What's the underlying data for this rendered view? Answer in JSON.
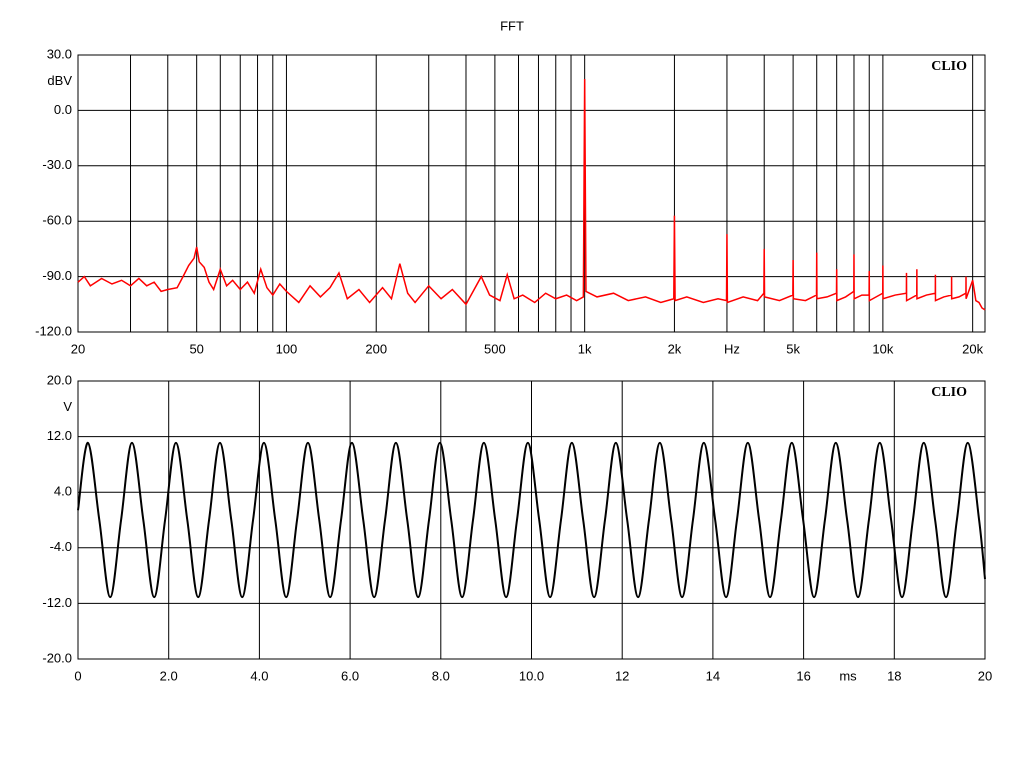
{
  "title": "FFT",
  "chart_data": [
    {
      "type": "line",
      "log_x": true,
      "grid": true,
      "color": "#ff0000",
      "watermark": "CLIO",
      "xlabel": "Hz",
      "ylabel": "dBV",
      "xlim": [
        20,
        22000
      ],
      "ylim": [
        -120,
        30
      ],
      "xticks": [
        20,
        50,
        100,
        200,
        500,
        {
          "value": 1000,
          "label": "1k"
        },
        {
          "value": 2000,
          "label": "2k"
        },
        {
          "value": 5000,
          "label": "5k"
        },
        {
          "value": 10000,
          "label": "10k"
        },
        {
          "value": 20000,
          "label": "20k"
        }
      ],
      "xminor": [
        30,
        40,
        60,
        70,
        80,
        90,
        300,
        400,
        600,
        700,
        800,
        900,
        3000,
        4000,
        6000,
        7000,
        8000,
        9000
      ],
      "yticks": [
        {
          "value": 30,
          "label": "30.0"
        },
        {
          "value": 0,
          "label": "0.0"
        },
        {
          "value": -30,
          "label": "-30.0"
        },
        {
          "value": -60,
          "label": "-60.0"
        },
        {
          "value": -90,
          "label": "-90.0"
        },
        {
          "value": -120,
          "label": "-120.0"
        }
      ],
      "x": [
        20,
        21,
        22,
        24,
        26,
        28,
        30,
        32,
        34,
        36,
        38,
        40,
        43,
        45,
        47,
        49,
        50,
        51,
        53,
        55,
        57,
        60,
        63,
        66,
        70,
        74,
        78,
        82,
        86,
        90,
        95,
        100,
        110,
        120,
        130,
        140,
        150,
        160,
        175,
        190,
        210,
        225,
        240,
        255,
        270,
        300,
        330,
        360,
        400,
        450,
        480,
        520,
        550,
        580,
        620,
        680,
        740,
        800,
        870,
        940,
        990,
        1000,
        1010,
        1100,
        1250,
        1400,
        1600,
        1800,
        1990,
        2000,
        2010,
        2200,
        2500,
        2800,
        2990,
        3000,
        3010,
        3400,
        3800,
        3990,
        4000,
        4010,
        4500,
        4990,
        5000,
        5010,
        5500,
        5990,
        6000,
        6010,
        6500,
        6990,
        7000,
        7010,
        7500,
        7990,
        8000,
        8010,
        8500,
        8990,
        9000,
        9010,
        9990,
        10000,
        10010,
        11000,
        11990,
        12000,
        12010,
        12990,
        13000,
        13010,
        14000,
        14990,
        15000,
        15010,
        16000,
        16990,
        17000,
        17010,
        18000,
        18990,
        19000,
        19010,
        20000,
        20500,
        21000,
        21500,
        22000
      ],
      "values": [
        -93,
        -90,
        -95,
        -91,
        -94,
        -92,
        -95,
        -91,
        -95,
        -93,
        -98,
        -97,
        -96,
        -90,
        -84,
        -80,
        -74,
        -82,
        -85,
        -93,
        -97,
        -86,
        -95,
        -92,
        -97,
        -93,
        -99,
        -86,
        -96,
        -100,
        -94,
        -98,
        -104,
        -95,
        -101,
        -96,
        -88,
        -102,
        -97,
        -104,
        -96,
        -102,
        -83,
        -99,
        -104,
        -95,
        -102,
        -97,
        -105,
        -90,
        -100,
        -103,
        -89,
        -102,
        -100,
        -104,
        -99,
        -102,
        -100,
        -103,
        -101,
        17,
        -98,
        -101,
        -99,
        -103,
        -101,
        -104,
        -102,
        -57,
        -103,
        -101,
        -104,
        -102,
        -103,
        -67,
        -104,
        -101,
        -103,
        -99,
        -75,
        -101,
        -103,
        -100,
        -81,
        -102,
        -103,
        -100,
        -77,
        -102,
        -101,
        -99,
        -86,
        -103,
        -101,
        -98,
        -78,
        -102,
        -100,
        -100,
        -87,
        -103,
        -99,
        -84,
        -102,
        -100,
        -99,
        -88,
        -103,
        -100,
        -86,
        -102,
        -100,
        -99,
        -89,
        -103,
        -101,
        -100,
        -90,
        -102,
        -101,
        -99,
        -90,
        -102,
        -92,
        -103,
        -104,
        -107,
        -108
      ]
    },
    {
      "type": "line",
      "log_x": false,
      "grid": true,
      "color": "#000000",
      "watermark": "CLIO",
      "xlabel": "ms",
      "ylabel": "V",
      "xlim": [
        0,
        20
      ],
      "ylim": [
        -20,
        20
      ],
      "xticks": [
        0,
        {
          "value": 2,
          "label": "2.0"
        },
        {
          "value": 4,
          "label": "4.0"
        },
        {
          "value": 6,
          "label": "6.0"
        },
        {
          "value": 8,
          "label": "8.0"
        },
        {
          "value": 10,
          "label": "10.0"
        },
        12,
        14,
        16,
        18,
        20
      ],
      "yticks": [
        {
          "value": 20,
          "label": "20.0"
        },
        {
          "value": 12,
          "label": "12.0"
        },
        {
          "value": 4,
          "label": "4.0"
        },
        {
          "value": -4,
          "label": "-4.0"
        },
        {
          "value": -12,
          "label": "-12.0"
        },
        {
          "value": -20,
          "label": "-20.0"
        }
      ],
      "x": [
        0,
        0.22,
        0.47,
        0.71,
        0.95,
        1.19,
        1.44,
        1.68,
        1.92,
        2.16,
        2.41,
        2.65,
        2.89,
        3.13,
        3.38,
        3.62,
        3.86,
        4.1,
        4.35,
        4.59,
        4.83,
        5.07,
        5.32,
        5.56,
        5.8,
        6.04,
        6.29,
        6.53,
        6.77,
        7.01,
        7.26,
        7.5,
        7.74,
        7.98,
        8.23,
        8.47,
        8.71,
        8.95,
        9.2,
        9.44,
        9.68,
        9.92,
        10.17,
        10.41,
        10.65,
        10.89,
        11.14,
        11.38,
        11.62,
        11.86,
        12.11,
        12.35,
        12.59,
        12.83,
        13.08,
        13.32,
        13.56,
        13.8,
        14.05,
        14.29,
        14.53,
        14.77,
        15.02,
        15.26,
        15.5,
        15.74,
        15.99,
        16.23,
        16.47,
        16.71,
        16.96,
        17.2,
        17.44,
        17.68,
        17.93,
        18.17,
        18.41,
        18.65,
        18.9,
        19.14,
        19.38,
        19.62,
        19.87,
        20
      ],
      "values": [
        1.4,
        11.1,
        0,
        -11.1,
        0,
        11.1,
        0,
        -11.1,
        0,
        11.1,
        0,
        -11.1,
        0,
        11.1,
        0,
        -11.1,
        0,
        11.1,
        0,
        -11.1,
        0,
        11.1,
        0,
        -11.1,
        0,
        11.1,
        0,
        -11.1,
        0,
        11.1,
        0,
        -11.1,
        0,
        11.1,
        0,
        -11.1,
        0,
        11.1,
        0,
        -11.1,
        0,
        11.1,
        0,
        -11.1,
        0,
        11.1,
        0,
        -11.1,
        0,
        11.1,
        0,
        -11.1,
        0,
        11.1,
        0,
        -11.1,
        0,
        11.1,
        0,
        -11.1,
        0,
        11.1,
        0,
        -11.1,
        0,
        11.1,
        0,
        -11.1,
        0,
        11.1,
        0,
        -11.1,
        0,
        11.1,
        0,
        -11.1,
        0,
        11.1,
        0,
        -11.1,
        0,
        11.1,
        0,
        -8.5
      ]
    }
  ]
}
